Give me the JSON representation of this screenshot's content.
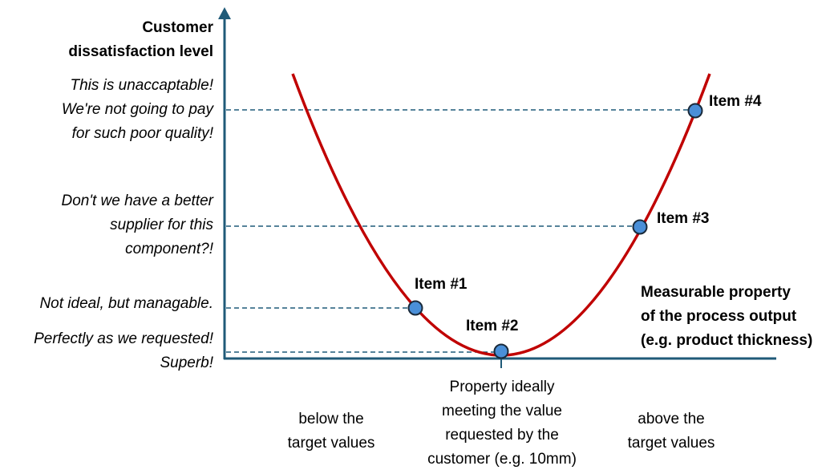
{
  "y_axis_label": [
    "Customer",
    "dissatisfaction level"
  ],
  "x_axis_label": [
    "Measurable property",
    "of the process output",
    "(e.g. product thickness)"
  ],
  "levels": [
    {
      "lines": [
        "This is unaccaptable!",
        "We're not going to pay",
        "for such poor quality!"
      ]
    },
    {
      "lines": [
        "Don't we have a better",
        "supplier for this",
        "component?!"
      ]
    },
    {
      "lines": [
        "Not ideal, but managable."
      ]
    },
    {
      "lines": [
        "Perfectly as we requested!",
        "Superb!"
      ]
    }
  ],
  "items": [
    "Item #1",
    "Item #2",
    "Item #3",
    "Item #4"
  ],
  "x_regions": {
    "below": [
      "below the",
      "target values"
    ],
    "target": [
      "Property ideally",
      "meeting the value",
      "requested by the",
      "customer (e.g. 10mm)"
    ],
    "above": [
      "above the",
      "target values"
    ]
  },
  "colors": {
    "axis": "#1f5a78",
    "curve": "#c00000",
    "point_fill": "#4a8fd8",
    "point_stroke": "#1a2a3a"
  }
}
